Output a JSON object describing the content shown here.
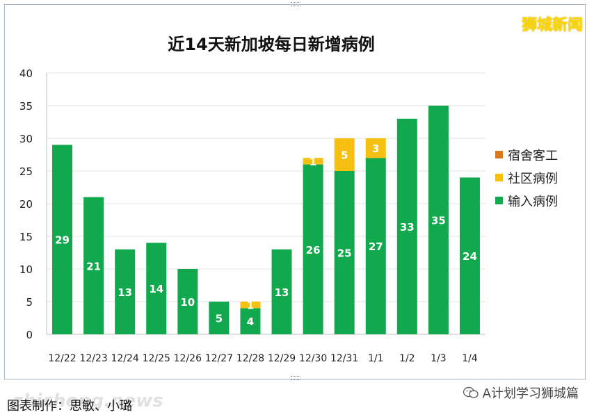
{
  "brand": "狮城新闻",
  "footer": {
    "credit": "图表制作：思敏、小璐",
    "watermark": "zhicheng.news",
    "account": "A计划学习狮城篇"
  },
  "chart_data": {
    "type": "bar",
    "stacked": true,
    "title": "近14天新加坡每日新增病例",
    "xlabel": "",
    "ylabel": "",
    "ylim": [
      0,
      40
    ],
    "yticks": [
      0,
      5,
      10,
      15,
      20,
      25,
      30,
      35,
      40
    ],
    "grid": true,
    "legend_position": "right",
    "categories": [
      "12/22",
      "12/23",
      "12/24",
      "12/25",
      "12/26",
      "12/27",
      "12/28",
      "12/29",
      "12/30",
      "12/31",
      "1/1",
      "1/2",
      "1/3",
      "1/4"
    ],
    "series": [
      {
        "name": "输入病例",
        "color": "#12a84e",
        "values": [
          29,
          21,
          13,
          14,
          10,
          5,
          4,
          13,
          26,
          25,
          27,
          33,
          35,
          24
        ]
      },
      {
        "name": "社区病例",
        "color": "#f5c011",
        "values": [
          0,
          0,
          0,
          0,
          0,
          0,
          1,
          0,
          1,
          5,
          3,
          0,
          0,
          0
        ]
      },
      {
        "name": "宿舍客工",
        "color": "#d9781f",
        "values": [
          0,
          0,
          0,
          0,
          0,
          0,
          0,
          0,
          0,
          0,
          0,
          0,
          0,
          0
        ]
      }
    ],
    "legend_order": [
      "宿舍客工",
      "社区病例",
      "输入病例"
    ]
  }
}
